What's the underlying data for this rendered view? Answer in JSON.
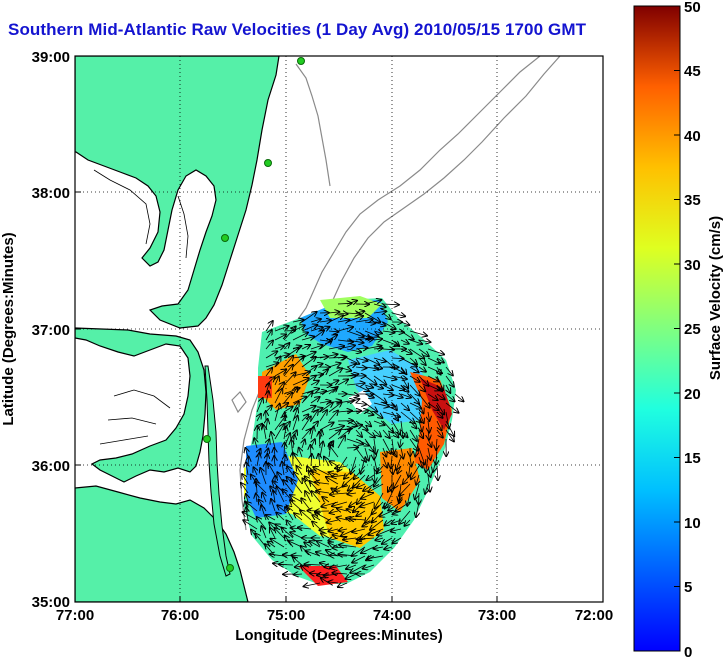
{
  "title": "Southern Mid-Atlantic Raw Velocities (1 Day Avg) 2010/05/15 1700 GMT",
  "chart_data": {
    "type": "map",
    "xlabel": "Longitude (Degrees:Minutes)",
    "ylabel": "Latitude (Degrees:Minutes)",
    "x_ticks": [
      "77:00",
      "76:00",
      "75:00",
      "74:00",
      "73:00",
      "72:00"
    ],
    "y_ticks": [
      "39:00",
      "38:00",
      "37:00",
      "36:00",
      "35:00"
    ],
    "xlim": [
      -77,
      -72
    ],
    "ylim": [
      35,
      39
    ],
    "grid": true,
    "colorbar": {
      "label": "Surface Velocity (cm/s)",
      "ticks": [
        "0",
        "5",
        "10",
        "15",
        "20",
        "25",
        "30",
        "35",
        "40",
        "45",
        "50"
      ],
      "range": [
        0,
        50
      ],
      "colormap": "jet"
    },
    "colors": {
      "land": "#55f0a8",
      "coastline": "#000000",
      "bathymetry_contour": "#8a8a8a",
      "title": "#1414d0",
      "station_marker": "#22cc22"
    }
  }
}
